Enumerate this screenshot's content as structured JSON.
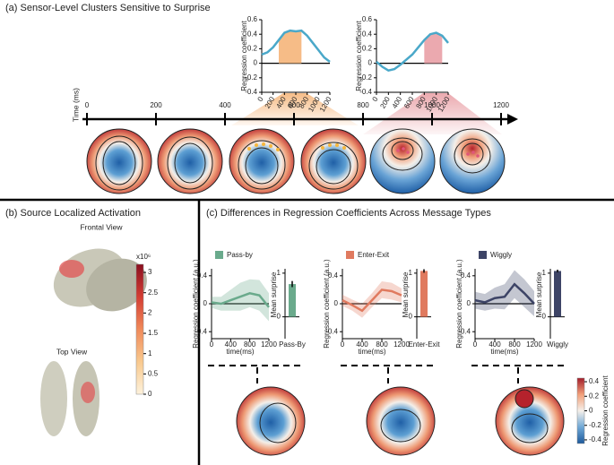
{
  "panel_a": {
    "title": "(a) Sensor-Level Clusters Sensitive to Surprise",
    "timeline": {
      "label": "Time (ms)",
      "range": [
        0,
        1200
      ],
      "ticks": [
        0,
        200,
        400,
        600,
        800,
        1000,
        1200
      ]
    }
  },
  "panel_b": {
    "title": "(b) Source Localized Activation",
    "views": [
      "Frontal View",
      "Top View"
    ]
  },
  "panel_c": {
    "title": "(c) Differences in Regression Coefficients Across Message Types"
  },
  "chart_data": [
    {
      "type": "line",
      "ylabel": "Regression coefficient",
      "x": [
        0,
        100,
        200,
        300,
        400,
        500,
        600,
        700,
        800,
        900,
        1000,
        1100,
        1200
      ],
      "xlim": [
        0,
        1200
      ],
      "xticks": [
        0,
        200,
        400,
        600,
        800,
        1000,
        1200
      ],
      "ylim": [
        -0.4,
        0.6
      ],
      "yticks": [
        -0.4,
        -0.2,
        0,
        0.2,
        0.4,
        0.6
      ],
      "highlight": [
        300,
        700
      ],
      "highlight_color": "#f5b57a",
      "series": [
        {
          "color": "#4aa8c9",
          "values": [
            0.12,
            0.15,
            0.22,
            0.32,
            0.42,
            0.45,
            0.44,
            0.45,
            0.38,
            0.28,
            0.18,
            0.08,
            0.02
          ]
        }
      ]
    },
    {
      "type": "line",
      "ylabel": "Regression coefficient",
      "x": [
        0,
        100,
        200,
        300,
        400,
        500,
        600,
        700,
        800,
        900,
        1000,
        1100,
        1200
      ],
      "xlim": [
        0,
        1200
      ],
      "xticks": [
        0,
        200,
        400,
        600,
        800,
        1000,
        1200
      ],
      "ylim": [
        -0.4,
        0.6
      ],
      "yticks": [
        -0.4,
        -0.2,
        0,
        0.2,
        0.4,
        0.6
      ],
      "highlight": [
        800,
        1100
      ],
      "highlight_color": "#e9a0a6",
      "series": [
        {
          "color": "#4aa8c9",
          "values": [
            0.02,
            -0.05,
            -0.1,
            -0.08,
            -0.02,
            0.05,
            0.12,
            0.22,
            0.32,
            0.4,
            0.42,
            0.38,
            0.28
          ]
        }
      ]
    },
    {
      "type": "line",
      "ylabel": "Regression coefficient (a.u.)",
      "xlabel": "time(ms)",
      "x": [
        0,
        200,
        400,
        600,
        800,
        1000,
        1200
      ],
      "xlim": [
        0,
        1200
      ],
      "xticks": [
        0,
        400,
        800,
        1200
      ],
      "ylim": [
        -0.5,
        0.5
      ],
      "yticks": [
        -0.4,
        0,
        0.4
      ],
      "series": [
        {
          "name": "Pass-by",
          "color": "#6aaa8c",
          "values": [
            0.02,
            0.0,
            0.05,
            0.1,
            0.15,
            0.12,
            -0.05
          ],
          "error": [
            0.08,
            0.1,
            0.15,
            0.2,
            0.2,
            0.22,
            0.2
          ]
        }
      ]
    },
    {
      "type": "bar",
      "ylabel": "Mean surprise",
      "categories": [
        "Pass-By"
      ],
      "values": [
        0.75
      ],
      "errors": [
        0.07
      ],
      "color": "#6aaa8c",
      "ylim": [
        -0.5,
        1.1
      ],
      "yticks": [
        0,
        1
      ]
    },
    {
      "type": "line",
      "ylabel": "Regression coefficient (a.u.)",
      "xlabel": "time(ms)",
      "x": [
        0,
        200,
        400,
        600,
        800,
        1000,
        1200
      ],
      "xlim": [
        0,
        1200
      ],
      "xticks": [
        0,
        400,
        800,
        1200
      ],
      "ylim": [
        -0.5,
        0.5
      ],
      "yticks": [
        -0.4,
        0,
        0.4
      ],
      "series": [
        {
          "name": "Enter-Exit",
          "color": "#e07a5f",
          "values": [
            0.05,
            -0.02,
            -0.1,
            0.05,
            0.2,
            0.18,
            0.12
          ],
          "error": [
            0.08,
            0.08,
            0.1,
            0.1,
            0.12,
            0.12,
            0.1
          ]
        }
      ]
    },
    {
      "type": "bar",
      "ylabel": "Mean surprise",
      "categories": [
        "Enter-Exit"
      ],
      "values": [
        1.05
      ],
      "errors": [
        0.04
      ],
      "color": "#e07a5f",
      "ylim": [
        -0.5,
        1.1
      ],
      "yticks": [
        0,
        1
      ]
    },
    {
      "type": "line",
      "ylabel": "Regression coefficient (a.u.)",
      "xlabel": "time(ms)",
      "x": [
        0,
        200,
        400,
        600,
        800,
        1000,
        1200
      ],
      "xlim": [
        0,
        1200
      ],
      "xticks": [
        0,
        400,
        800,
        1200
      ],
      "ylim": [
        -0.5,
        0.5
      ],
      "yticks": [
        -0.4,
        0,
        0.4
      ],
      "series": [
        {
          "name": "Wiggly",
          "color": "#3d4466",
          "values": [
            0.05,
            0.02,
            0.08,
            0.1,
            0.28,
            0.15,
            0.0
          ],
          "error": [
            0.12,
            0.12,
            0.15,
            0.18,
            0.2,
            0.2,
            0.18
          ]
        }
      ]
    },
    {
      "type": "bar",
      "ylabel": "Mean surprise",
      "categories": [
        "Wiggly"
      ],
      "values": [
        1.05
      ],
      "errors": [
        0.03
      ],
      "color": "#3d4466",
      "ylim": [
        -0.5,
        1.1
      ],
      "yticks": [
        0,
        1
      ]
    },
    {
      "type": "colorbar",
      "title": "x10⁶",
      "ylim": [
        0,
        3.2
      ],
      "yticks": [
        0,
        0.5,
        1,
        1.5,
        2,
        2.5,
        3
      ],
      "colors": [
        "#fdf2dc",
        "#f9c98e",
        "#f08a5a",
        "#d43d33",
        "#8a0f1f"
      ]
    },
    {
      "type": "colorbar",
      "ylabel": "Regression coefficient",
      "ylim": [
        -0.45,
        0.45
      ],
      "yticks": [
        -0.4,
        -0.2,
        0,
        0.2,
        0.4
      ],
      "colors": [
        "#1e5a9c",
        "#6fa8d6",
        "#f5f0ea",
        "#f2a07a",
        "#a31d2a"
      ]
    }
  ]
}
